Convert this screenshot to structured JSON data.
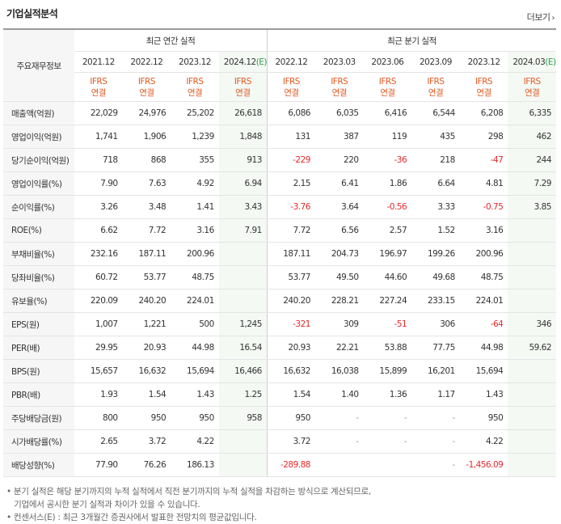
{
  "section_title": "기업실적분석",
  "more_label": "더보기",
  "header": {
    "row_head": "주요재무정보",
    "annual_label": "최근 연간 실적",
    "quarter_label": "최근 분기 실적",
    "periods": [
      "2021.12",
      "2022.12",
      "2023.12",
      "2024.12",
      "2022.12",
      "2023.03",
      "2023.06",
      "2023.09",
      "2023.12",
      "2024.03"
    ],
    "estimate_mark": "(E)",
    "ifrs_top": "IFRS",
    "ifrs_bottom": "연결"
  },
  "rows": [
    {
      "label": "매출액(억원)",
      "values": [
        "22,029",
        "24,976",
        "25,202",
        "26,618",
        "6,086",
        "6,035",
        "6,416",
        "6,544",
        "6,208",
        "6,335"
      ]
    },
    {
      "label": "영업이익(억원)",
      "values": [
        "1,741",
        "1,906",
        "1,239",
        "1,848",
        "131",
        "387",
        "119",
        "435",
        "298",
        "462"
      ]
    },
    {
      "label": "당기순이익(억원)",
      "values": [
        "718",
        "868",
        "355",
        "913",
        "-229",
        "220",
        "-36",
        "218",
        "-47",
        "244"
      ]
    },
    {
      "label": "영업이익률(%)",
      "values": [
        "7.90",
        "7.63",
        "4.92",
        "6.94",
        "2.15",
        "6.41",
        "1.86",
        "6.64",
        "4.81",
        "7.29"
      ]
    },
    {
      "label": "순이익률(%)",
      "values": [
        "3.26",
        "3.48",
        "1.41",
        "3.43",
        "-3.76",
        "3.64",
        "-0.56",
        "3.33",
        "-0.75",
        "3.85"
      ]
    },
    {
      "label": "ROE(%)",
      "values": [
        "6.62",
        "7.72",
        "3.16",
        "7.91",
        "7.72",
        "6.56",
        "2.57",
        "1.52",
        "3.16",
        ""
      ]
    },
    {
      "label": "부채비율(%)",
      "values": [
        "232.16",
        "187.11",
        "200.96",
        "",
        "187.11",
        "204.73",
        "196.97",
        "199.26",
        "200.96",
        ""
      ]
    },
    {
      "label": "당좌비율(%)",
      "values": [
        "60.72",
        "53.77",
        "48.75",
        "",
        "53.77",
        "49.50",
        "44.60",
        "49.68",
        "48.75",
        ""
      ]
    },
    {
      "label": "유보율(%)",
      "values": [
        "220.09",
        "240.20",
        "224.01",
        "",
        "240.20",
        "228.21",
        "227.24",
        "233.15",
        "224.01",
        ""
      ]
    },
    {
      "label": "EPS(원)",
      "values": [
        "1,007",
        "1,221",
        "500",
        "1,245",
        "-321",
        "309",
        "-51",
        "306",
        "-64",
        "346"
      ]
    },
    {
      "label": "PER(배)",
      "values": [
        "29.95",
        "20.93",
        "44.98",
        "16.54",
        "20.93",
        "22.21",
        "53.88",
        "77.75",
        "44.98",
        "59.62"
      ]
    },
    {
      "label": "BPS(원)",
      "values": [
        "15,657",
        "16,632",
        "15,694",
        "16,466",
        "16,632",
        "16,038",
        "15,899",
        "16,201",
        "15,694",
        ""
      ]
    },
    {
      "label": "PBR(배)",
      "values": [
        "1.93",
        "1.54",
        "1.43",
        "1.25",
        "1.54",
        "1.40",
        "1.36",
        "1.17",
        "1.43",
        ""
      ]
    },
    {
      "label": "주당배당금(원)",
      "values": [
        "800",
        "950",
        "950",
        "958",
        "950",
        "-",
        "-",
        "-",
        "950",
        ""
      ]
    },
    {
      "label": "시가배당률(%)",
      "values": [
        "2.65",
        "3.72",
        "4.22",
        "",
        "3.72",
        "-",
        "-",
        "-",
        "4.22",
        ""
      ]
    },
    {
      "label": "배당성향(%)",
      "values": [
        "77.90",
        "76.26",
        "186.13",
        "",
        "-289.88",
        "",
        "",
        "-",
        "-1,456.09",
        ""
      ]
    }
  ],
  "notes": [
    "• 분기 실적은 해당 분기까지의 누적 실적에서 직전 분기까지의 누적 실적을 차감하는 방식으로 계산되므로,",
    "   기업에서 공시한 분기 실적과 차이가 있을 수 있습니다.",
    "• 컨센서스(E) : 최근 3개월간 증권사에서 발표한 전망치의 평균값입니다."
  ]
}
